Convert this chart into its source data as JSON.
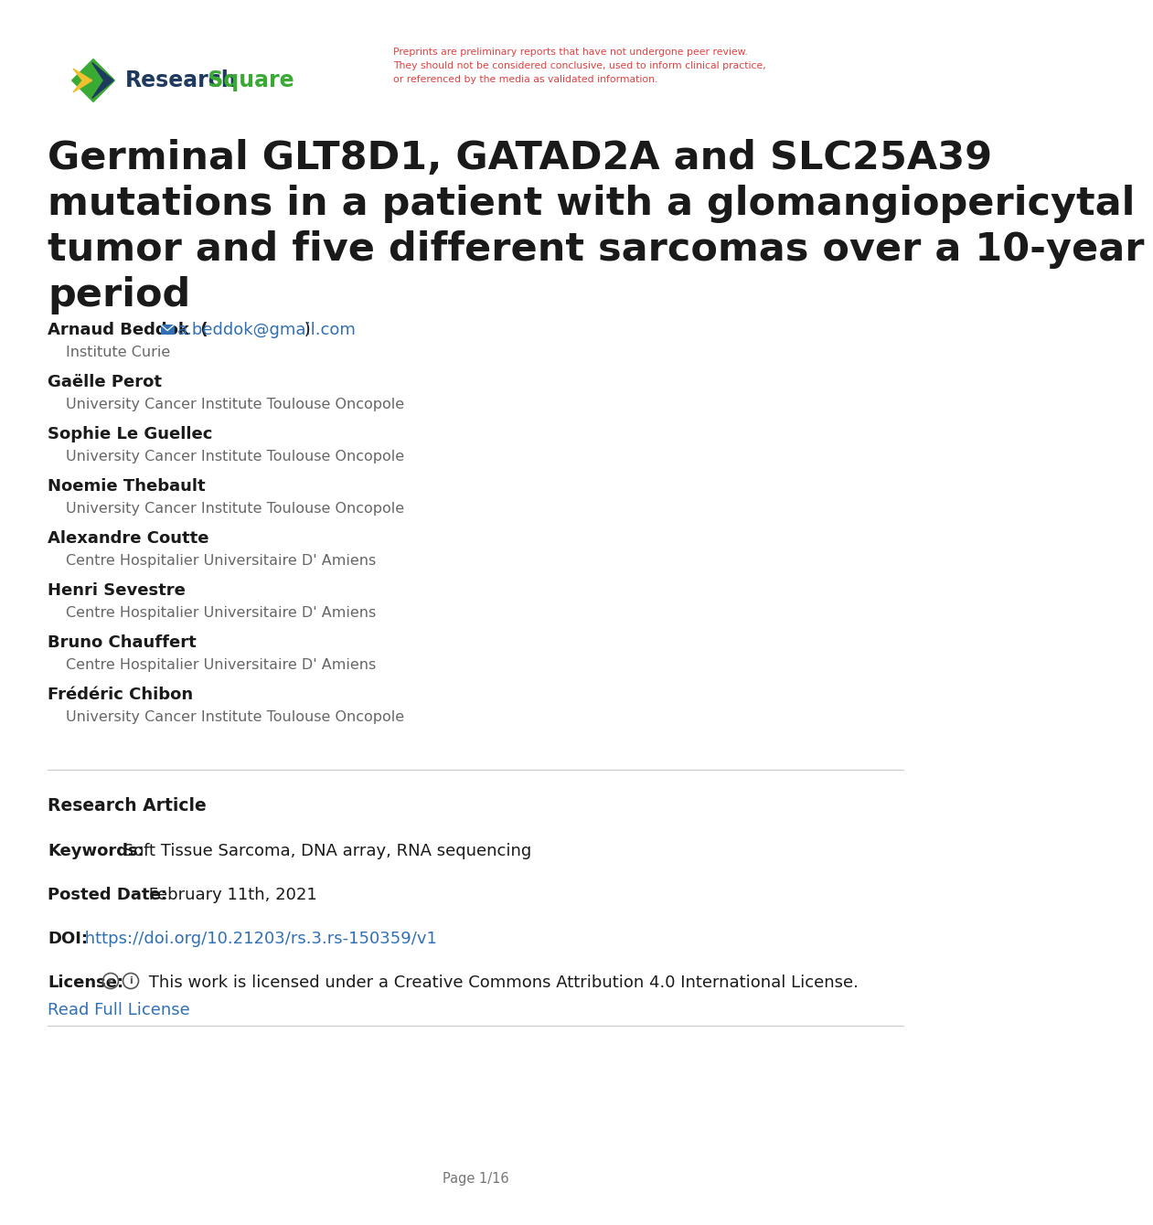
{
  "bg_color": "#ffffff",
  "disclaimer": "Preprints are preliminary reports that have not undergone peer review.\nThey should not be considered conclusive, used to inform clinical practice,\nor referenced by the media as validated information.",
  "title_line1": "Germinal GLT8D1, GATAD2A and SLC25A39",
  "title_line2": "mutations in a patient with a glomangiopericytal",
  "title_line3": "tumor and five different sarcomas over a 10-year",
  "title_line4": "period",
  "authors": [
    {
      "name": "Arnaud Beddok",
      "email": "a.beddok@gmail.com",
      "affiliation": "Institute Curie"
    },
    {
      "name": "Gaëlle Perot",
      "email": null,
      "affiliation": "University Cancer Institute Toulouse Oncopole"
    },
    {
      "name": "Sophie Le Guellec",
      "email": null,
      "affiliation": "University Cancer Institute Toulouse Oncopole"
    },
    {
      "name": "Noemie Thebault",
      "email": null,
      "affiliation": "University Cancer Institute Toulouse Oncopole"
    },
    {
      "name": "Alexandre Coutte",
      "email": null,
      "affiliation": "Centre Hospitalier Universitaire D' Amiens"
    },
    {
      "name": "Henri Sevestre",
      "email": null,
      "affiliation": "Centre Hospitalier Universitaire D' Amiens"
    },
    {
      "name": "Bruno Chauffert",
      "email": null,
      "affiliation": "Centre Hospitalier Universitaire D' Amiens"
    },
    {
      "name": "Frédéric Chibon",
      "email": null,
      "affiliation": "University Cancer Institute Toulouse Oncopole"
    }
  ],
  "article_type": "Research Article",
  "keywords_label": "Keywords:",
  "keywords_value": "Soft Tissue Sarcoma, DNA array, RNA sequencing",
  "posted_date_label": "Posted Date:",
  "posted_date_value": "February 11th, 2021",
  "doi_label": "DOI:",
  "doi_value": "https://doi.org/10.21203/rs.3.rs-150359/v1",
  "license_label": "License:",
  "license_icons": "©ⓘ",
  "license_text": " This work is licensed under a Creative Commons Attribution 4.0 International License.",
  "read_license": "Read Full License",
  "page_footer": "Page 1/16",
  "title_color": "#1a1a1a",
  "author_name_color": "#1a1a1a",
  "affiliation_color": "#666666",
  "link_color": "#3070b3",
  "disclaimer_color": "#e04040",
  "section_label_color": "#1a1a1a",
  "logo_research_color": "#1e3a5f",
  "logo_square_color": "#3aaa35",
  "logo_icon_green": "#3aaa35",
  "logo_icon_navy": "#1e3a5f",
  "logo_icon_yellow": "#f0c030"
}
